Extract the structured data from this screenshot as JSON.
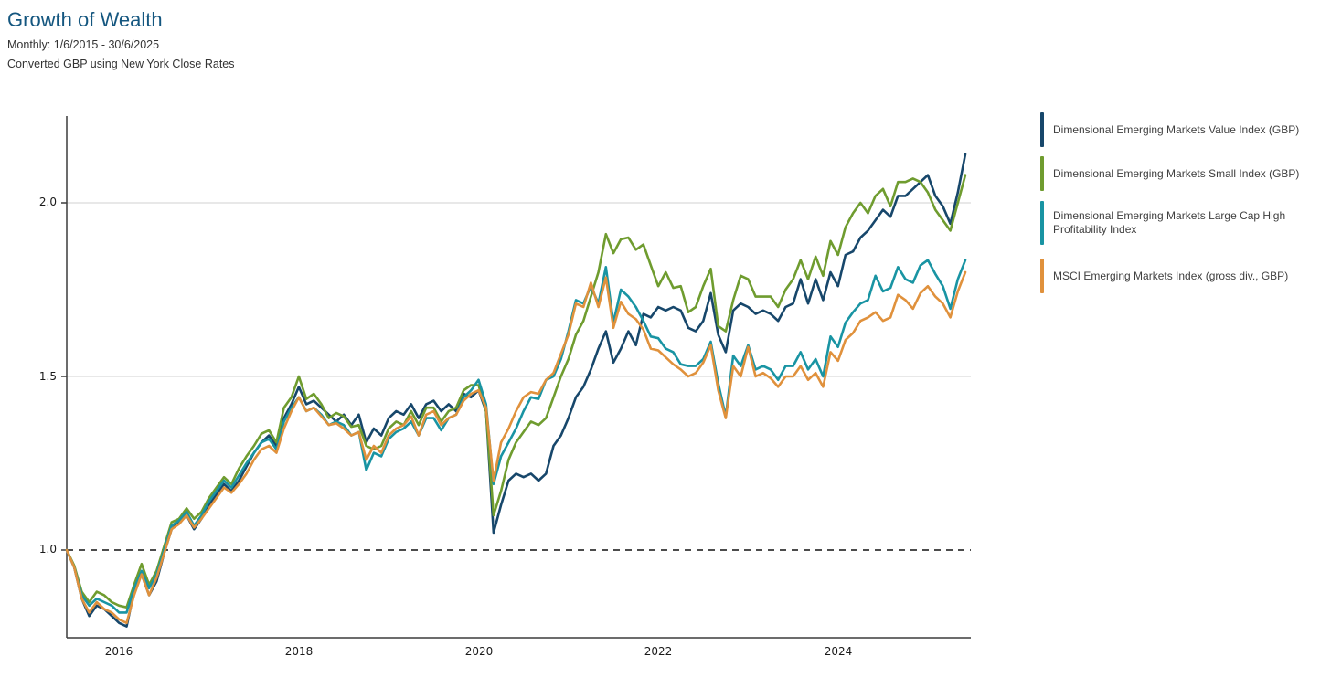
{
  "header": {
    "title": "Growth of Wealth",
    "subtitle_line1": "Monthly: 1/6/2015 - 30/6/2025",
    "subtitle_line2": "Converted GBP using New York Close Rates"
  },
  "colors": {
    "title_blue": "#14567F",
    "axis": "#3c3c3c",
    "gridline": "#d2d2d2",
    "baseline_dash": "#111111"
  },
  "chart_data": {
    "type": "line",
    "title": "Growth of Wealth",
    "frequency": "monthly",
    "x_start": "2015-06",
    "x_end": "2025-06",
    "baseline": 1.0,
    "ylim": [
      0.74,
      2.26
    ],
    "grid": "horizontal gridlines at 1.5 and 2.0; dashed black baseline at 1.0",
    "legend_position": "right",
    "y_tick_labels": [
      "2.0",
      "1.5",
      "1.0"
    ],
    "y_tick_values": [
      2.0,
      1.5,
      1.0
    ],
    "x_ticks": [
      {
        "label": "2016",
        "month_index": 7
      },
      {
        "label": "2018",
        "month_index": 31
      },
      {
        "label": "2020",
        "month_index": 55
      },
      {
        "label": "2022",
        "month_index": 79
      },
      {
        "label": "2024",
        "month_index": 103
      }
    ],
    "series": [
      {
        "id": "dim-em-value",
        "name": "Dimensional Emerging Markets Value Index (GBP)",
        "color": "#17476B",
        "values": [
          1.0,
          0.95,
          0.86,
          0.81,
          0.84,
          0.83,
          0.81,
          0.79,
          0.78,
          0.88,
          0.93,
          0.87,
          0.91,
          0.99,
          1.06,
          1.08,
          1.1,
          1.06,
          1.09,
          1.13,
          1.16,
          1.19,
          1.17,
          1.2,
          1.24,
          1.28,
          1.31,
          1.33,
          1.3,
          1.38,
          1.42,
          1.47,
          1.42,
          1.43,
          1.41,
          1.39,
          1.37,
          1.39,
          1.36,
          1.39,
          1.31,
          1.35,
          1.33,
          1.38,
          1.4,
          1.39,
          1.42,
          1.38,
          1.42,
          1.43,
          1.4,
          1.42,
          1.4,
          1.45,
          1.44,
          1.46,
          1.4,
          1.05,
          1.13,
          1.2,
          1.22,
          1.21,
          1.22,
          1.2,
          1.22,
          1.3,
          1.33,
          1.38,
          1.44,
          1.47,
          1.52,
          1.58,
          1.63,
          1.54,
          1.58,
          1.63,
          1.59,
          1.68,
          1.67,
          1.7,
          1.69,
          1.7,
          1.69,
          1.64,
          1.63,
          1.66,
          1.74,
          1.62,
          1.57,
          1.69,
          1.71,
          1.7,
          1.68,
          1.69,
          1.68,
          1.66,
          1.7,
          1.71,
          1.78,
          1.71,
          1.78,
          1.72,
          1.8,
          1.76,
          1.85,
          1.86,
          1.9,
          1.92,
          1.95,
          1.98,
          1.96,
          2.02,
          2.02,
          2.04,
          2.06,
          2.08,
          2.02,
          1.99,
          1.94,
          2.03,
          2.14
        ]
      },
      {
        "id": "dim-em-small",
        "name": "Dimensional Emerging Markets Small Index (GBP)",
        "color": "#6F9C2F",
        "values": [
          1.0,
          0.955,
          0.88,
          0.85,
          0.88,
          0.87,
          0.85,
          0.84,
          0.835,
          0.9,
          0.96,
          0.9,
          0.94,
          1.01,
          1.08,
          1.09,
          1.12,
          1.09,
          1.11,
          1.15,
          1.18,
          1.21,
          1.19,
          1.235,
          1.27,
          1.3,
          1.335,
          1.345,
          1.31,
          1.41,
          1.44,
          1.5,
          1.435,
          1.45,
          1.42,
          1.38,
          1.395,
          1.385,
          1.355,
          1.36,
          1.3,
          1.29,
          1.3,
          1.35,
          1.37,
          1.36,
          1.4,
          1.36,
          1.41,
          1.41,
          1.37,
          1.4,
          1.41,
          1.46,
          1.475,
          1.475,
          1.4,
          1.1,
          1.17,
          1.26,
          1.31,
          1.34,
          1.37,
          1.36,
          1.38,
          1.44,
          1.5,
          1.55,
          1.62,
          1.66,
          1.73,
          1.8,
          1.91,
          1.855,
          1.895,
          1.9,
          1.865,
          1.88,
          1.82,
          1.76,
          1.8,
          1.755,
          1.76,
          1.685,
          1.7,
          1.76,
          1.81,
          1.645,
          1.63,
          1.72,
          1.79,
          1.78,
          1.73,
          1.73,
          1.73,
          1.7,
          1.75,
          1.78,
          1.835,
          1.78,
          1.845,
          1.79,
          1.89,
          1.85,
          1.93,
          1.97,
          2.0,
          1.97,
          2.02,
          2.04,
          1.99,
          2.06,
          2.06,
          2.07,
          2.06,
          2.03,
          1.98,
          1.95,
          1.92,
          2.0,
          2.08
        ]
      },
      {
        "id": "dim-em-large-hp",
        "name": "Dimensional Emerging Markets Large Cap High Profitability Index",
        "color": "#1994A3",
        "values": [
          1.0,
          0.95,
          0.87,
          0.84,
          0.86,
          0.85,
          0.84,
          0.82,
          0.82,
          0.89,
          0.94,
          0.89,
          0.93,
          1.0,
          1.07,
          1.085,
          1.11,
          1.07,
          1.1,
          1.14,
          1.17,
          1.2,
          1.18,
          1.215,
          1.25,
          1.28,
          1.31,
          1.32,
          1.29,
          1.37,
          1.41,
          1.44,
          1.4,
          1.41,
          1.39,
          1.36,
          1.37,
          1.36,
          1.33,
          1.34,
          1.23,
          1.28,
          1.27,
          1.32,
          1.34,
          1.35,
          1.37,
          1.33,
          1.38,
          1.38,
          1.345,
          1.38,
          1.39,
          1.44,
          1.46,
          1.49,
          1.42,
          1.19,
          1.27,
          1.31,
          1.35,
          1.4,
          1.44,
          1.435,
          1.49,
          1.5,
          1.55,
          1.63,
          1.72,
          1.71,
          1.76,
          1.71,
          1.815,
          1.655,
          1.75,
          1.73,
          1.7,
          1.66,
          1.615,
          1.61,
          1.58,
          1.57,
          1.535,
          1.53,
          1.53,
          1.55,
          1.6,
          1.48,
          1.385,
          1.56,
          1.53,
          1.59,
          1.52,
          1.53,
          1.52,
          1.49,
          1.53,
          1.53,
          1.57,
          1.52,
          1.55,
          1.5,
          1.615,
          1.585,
          1.655,
          1.685,
          1.71,
          1.72,
          1.79,
          1.745,
          1.755,
          1.815,
          1.78,
          1.77,
          1.82,
          1.835,
          1.795,
          1.76,
          1.695,
          1.78,
          1.835
        ]
      },
      {
        "id": "msci-em",
        "name": "MSCI Emerging Markets Index (gross div., GBP)",
        "color": "#E0913C",
        "values": [
          1.0,
          0.95,
          0.86,
          0.82,
          0.85,
          0.83,
          0.82,
          0.8,
          0.79,
          0.87,
          0.93,
          0.87,
          0.92,
          0.99,
          1.06,
          1.075,
          1.1,
          1.065,
          1.09,
          1.12,
          1.15,
          1.18,
          1.165,
          1.19,
          1.22,
          1.26,
          1.29,
          1.3,
          1.28,
          1.35,
          1.4,
          1.44,
          1.4,
          1.41,
          1.385,
          1.36,
          1.365,
          1.35,
          1.33,
          1.34,
          1.26,
          1.3,
          1.28,
          1.33,
          1.35,
          1.36,
          1.385,
          1.33,
          1.39,
          1.4,
          1.36,
          1.38,
          1.39,
          1.43,
          1.45,
          1.46,
          1.41,
          1.2,
          1.31,
          1.35,
          1.4,
          1.44,
          1.455,
          1.45,
          1.49,
          1.51,
          1.565,
          1.62,
          1.71,
          1.7,
          1.77,
          1.7,
          1.785,
          1.64,
          1.715,
          1.68,
          1.665,
          1.635,
          1.58,
          1.575,
          1.555,
          1.535,
          1.52,
          1.5,
          1.51,
          1.54,
          1.59,
          1.46,
          1.38,
          1.53,
          1.5,
          1.585,
          1.5,
          1.51,
          1.495,
          1.47,
          1.5,
          1.5,
          1.53,
          1.49,
          1.51,
          1.47,
          1.57,
          1.545,
          1.605,
          1.625,
          1.66,
          1.67,
          1.685,
          1.66,
          1.67,
          1.735,
          1.72,
          1.695,
          1.74,
          1.76,
          1.73,
          1.71,
          1.67,
          1.745,
          1.8
        ]
      }
    ]
  }
}
